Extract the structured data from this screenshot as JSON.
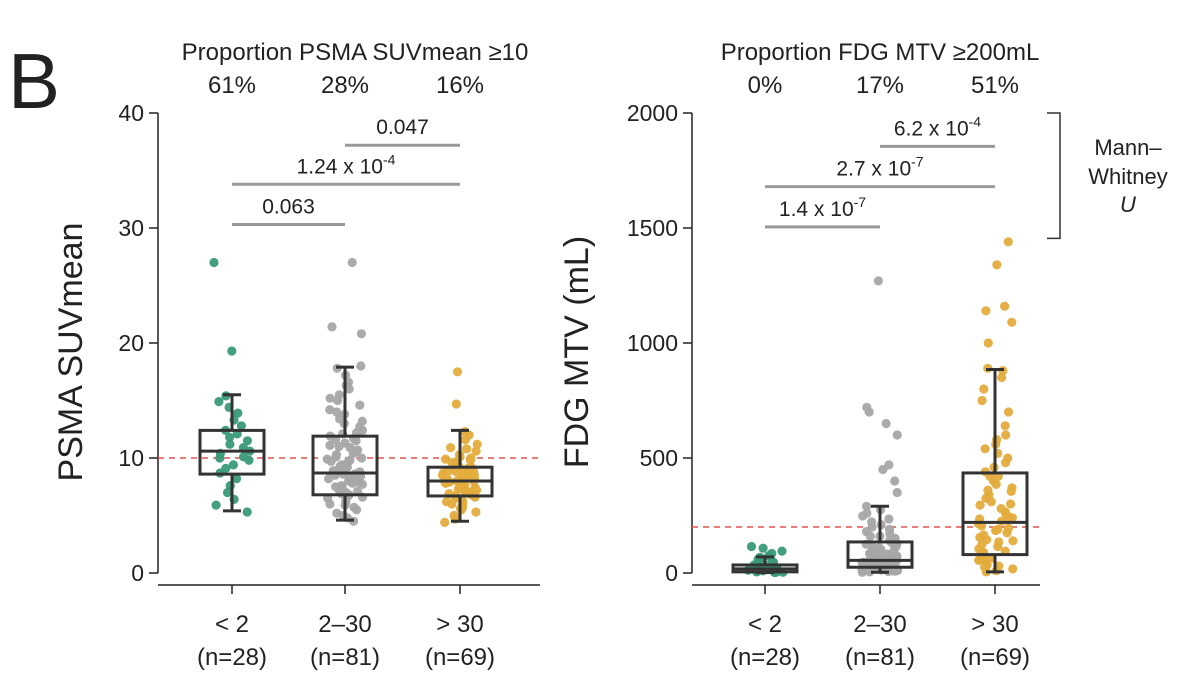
{
  "panel_label": "B",
  "chart_data": [
    {
      "type": "box",
      "ylabel": "PSMA SUVmean",
      "ylim": [
        0,
        40
      ],
      "yticks": [
        0,
        10,
        20,
        30,
        40
      ],
      "threshold": 10,
      "proportion_title": "Proportion PSMA SUVmean ≥10",
      "proportions": [
        "61%",
        "28%",
        "16%"
      ],
      "categories": [
        {
          "label": "< 2",
          "n": "(n=28)",
          "color": "#3a9a78",
          "box": {
            "whisker_low": 5.4,
            "q1": 8.6,
            "median": 10.6,
            "q3": 12.4,
            "whisker_high": 15.5
          },
          "points": [
            5.3,
            5.9,
            6.4,
            7.0,
            7.6,
            8.2,
            8.7,
            9.1,
            9.4,
            9.8,
            10.1,
            10.4,
            10.6,
            10.9,
            11.2,
            11.5,
            11.8,
            12.1,
            12.4,
            12.8,
            13.3,
            13.9,
            14.4,
            14.9,
            15.4,
            19.3,
            27.0,
            10.0
          ]
        },
        {
          "label": "2–30",
          "n": "(n=81)",
          "color": "#a6a6a6",
          "box": {
            "whisker_low": 4.6,
            "q1": 6.8,
            "median": 8.7,
            "q3": 11.9,
            "whisker_high": 17.9
          },
          "points": [
            4.5,
            4.8,
            5.0,
            5.2,
            5.5,
            5.7,
            5.9,
            6.1,
            6.3,
            6.5,
            6.7,
            6.8,
            6.9,
            7.1,
            7.2,
            7.4,
            7.5,
            7.7,
            7.8,
            7.9,
            8.1,
            8.2,
            8.3,
            8.4,
            8.5,
            8.6,
            8.7,
            8.8,
            8.9,
            9.0,
            9.2,
            9.3,
            9.4,
            9.6,
            9.7,
            9.8,
            10.0,
            10.1,
            10.3,
            10.5,
            10.7,
            10.9,
            11.1,
            11.3,
            11.5,
            11.7,
            11.9,
            12.1,
            12.4,
            12.7,
            13.0,
            13.4,
            13.8,
            14.2,
            14.6,
            15.0,
            15.5,
            16.0,
            16.6,
            17.2,
            17.8,
            18.0,
            20.8,
            21.4,
            27.0,
            6.0,
            6.6,
            7.0,
            7.6,
            8.0,
            8.6,
            9.1,
            9.9,
            10.4,
            11.0,
            11.6,
            12.2,
            13.2,
            14.0,
            15.2,
            16.3
          ]
        },
        {
          "label": "> 30",
          "n": "(n=69)",
          "color": "#e3ac3d",
          "box": {
            "whisker_low": 4.5,
            "q1": 6.7,
            "median": 8.0,
            "q3": 9.2,
            "whisker_high": 12.4
          },
          "points": [
            4.4,
            4.7,
            5.0,
            5.3,
            5.5,
            5.7,
            5.9,
            6.1,
            6.3,
            6.5,
            6.6,
            6.8,
            6.9,
            7.0,
            7.1,
            7.2,
            7.3,
            7.4,
            7.5,
            7.6,
            7.7,
            7.8,
            7.9,
            8.0,
            8.0,
            8.1,
            8.2,
            8.3,
            8.4,
            8.5,
            8.6,
            8.7,
            8.8,
            8.9,
            9.0,
            9.1,
            9.2,
            9.3,
            9.4,
            9.5,
            9.7,
            9.9,
            10.1,
            10.3,
            10.6,
            10.9,
            11.2,
            11.6,
            12.0,
            12.3,
            14.7,
            17.5,
            6.2,
            6.7,
            7.0,
            7.3,
            7.6,
            7.9,
            8.2,
            8.5,
            8.8,
            9.1,
            9.6,
            10.0,
            10.8,
            5.6,
            6.0,
            8.6,
            9.8
          ]
        }
      ],
      "comparisons": [
        {
          "from": 1,
          "to": 2,
          "y": 37.2,
          "text": "0.047"
        },
        {
          "from": 0,
          "to": 2,
          "y": 33.8,
          "text": "1.24 x 10",
          "sup": "-4"
        },
        {
          "from": 0,
          "to": 1,
          "y": 30.3,
          "text": "0.063"
        }
      ]
    },
    {
      "type": "box",
      "ylabel": "FDG MTV (mL)",
      "ylim": [
        0,
        2000
      ],
      "yticks": [
        0,
        500,
        1000,
        1500,
        2000
      ],
      "threshold": 200,
      "proportion_title": "Proportion FDG MTV ≥200mL",
      "proportions": [
        "0%",
        "17%",
        "51%"
      ],
      "categories": [
        {
          "label": "< 2",
          "n": "(n=28)",
          "color": "#3a9a78",
          "box": {
            "whisker_low": 2,
            "q1": 5,
            "median": 18,
            "q3": 35,
            "whisker_high": 70
          },
          "points": [
            2,
            3,
            4,
            5,
            6,
            8,
            9,
            10,
            12,
            14,
            16,
            18,
            20,
            22,
            25,
            28,
            31,
            35,
            40,
            46,
            52,
            60,
            68,
            75,
            85,
            95,
            108,
            115
          ]
        },
        {
          "label": "2–30",
          "n": "(n=81)",
          "color": "#a6a6a6",
          "box": {
            "whisker_low": 3,
            "q1": 25,
            "median": 55,
            "q3": 135,
            "whisker_high": 290
          },
          "points": [
            3,
            5,
            7,
            9,
            11,
            13,
            15,
            17,
            19,
            21,
            23,
            25,
            27,
            29,
            31,
            33,
            35,
            37,
            39,
            41,
            43,
            45,
            47,
            50,
            53,
            55,
            58,
            61,
            64,
            67,
            70,
            74,
            78,
            82,
            86,
            90,
            95,
            100,
            105,
            110,
            115,
            120,
            128,
            135,
            142,
            150,
            160,
            170,
            180,
            190,
            200,
            210,
            222,
            235,
            248,
            260,
            275,
            290,
            350,
            400,
            450,
            470,
            600,
            650,
            700,
            720,
            1270,
            8,
            14,
            22,
            30,
            40,
            48,
            60,
            72,
            85,
            98,
            112,
            125,
            140,
            160
          ]
        },
        {
          "label": "> 30",
          "n": "(n=69)",
          "color": "#e3ac3d",
          "box": {
            "whisker_low": 5,
            "q1": 80,
            "median": 220,
            "q3": 435,
            "whisker_high": 885
          },
          "points": [
            5,
            10,
            18,
            26,
            35,
            45,
            55,
            65,
            75,
            85,
            95,
            105,
            115,
            125,
            135,
            145,
            155,
            165,
            175,
            185,
            195,
            205,
            215,
            225,
            235,
            245,
            255,
            265,
            280,
            295,
            310,
            325,
            340,
            355,
            370,
            385,
            400,
            420,
            440,
            460,
            480,
            500,
            520,
            540,
            560,
            580,
            600,
            640,
            700,
            750,
            800,
            850,
            880,
            890,
            1000,
            1090,
            1140,
            1160,
            1340,
            1440,
            30,
            60,
            90,
            140,
            190,
            240,
            300,
            360,
            420
          ]
        }
      ],
      "comparisons": [
        {
          "from": 1,
          "to": 2,
          "y": 1855,
          "text": "6.2 x 10",
          "sup": "-4"
        },
        {
          "from": 0,
          "to": 2,
          "y": 1680,
          "text": "2.7 x 10",
          "sup": "-7"
        },
        {
          "from": 0,
          "to": 1,
          "y": 1505,
          "text": "1.4 x 10",
          "sup": "-7"
        }
      ],
      "test_label": [
        "Mann–",
        "Whitney",
        "U"
      ]
    }
  ]
}
